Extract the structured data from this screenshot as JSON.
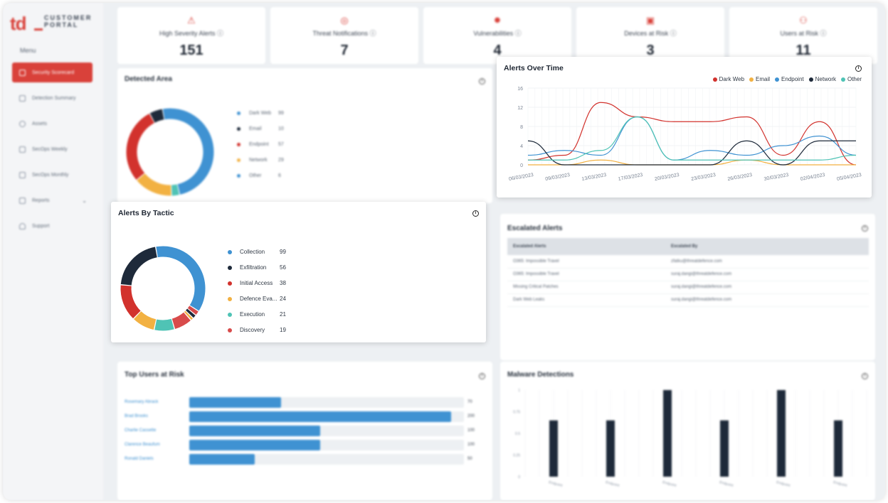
{
  "brand": {
    "logo_letters": "td",
    "logo_text_1": "CUSTOMER",
    "logo_text_2": "PORTAL"
  },
  "sidebar": {
    "menu_label": "Menu",
    "items": [
      {
        "label": "Security Scorecard",
        "active": true
      },
      {
        "label": "Detection Summary",
        "active": false
      },
      {
        "label": "Assets",
        "active": false
      },
      {
        "label": "SecOps Weekly",
        "active": false
      },
      {
        "label": "SecOps Monthly",
        "active": false
      },
      {
        "label": "Reports",
        "active": false,
        "has_submenu": true
      },
      {
        "label": "Support",
        "active": false
      }
    ]
  },
  "kpis": [
    {
      "label": "High Severity Alerts",
      "value": "151",
      "icon": "warning-triangle-icon"
    },
    {
      "label": "Threat Notifications",
      "value": "7",
      "icon": "target-icon"
    },
    {
      "label": "Vulnerabilities",
      "value": "4",
      "icon": "bug-icon"
    },
    {
      "label": "Devices at Risk",
      "value": "3",
      "icon": "device-icon"
    },
    {
      "label": "Users at Risk",
      "value": "11",
      "icon": "users-icon"
    }
  ],
  "detected_area": {
    "title": "Detected Area",
    "items": [
      {
        "label": "Dark Web",
        "value": "99"
      },
      {
        "label": "Email",
        "value": "10"
      },
      {
        "label": "Endpoint",
        "value": "57"
      },
      {
        "label": "Network",
        "value": "29"
      },
      {
        "label": "Other",
        "value": "6"
      }
    ]
  },
  "alerts_by_tactic": {
    "title": "Alerts By Tactic",
    "items": [
      {
        "label": "Collection",
        "value": "99",
        "color": "#3f92d2"
      },
      {
        "label": "Exfiltration",
        "value": "56",
        "color": "#1e2a3a"
      },
      {
        "label": "Initial Access",
        "display": "Initial Access",
        "value": "38",
        "color": "#d2322d"
      },
      {
        "label": "Defence Eva...",
        "value": "24",
        "color": "#f2b142"
      },
      {
        "label": "Execution",
        "value": "21",
        "color": "#4fc3b5"
      },
      {
        "label": "Discovery",
        "value": "19",
        "color": "#d84b4b"
      }
    ]
  },
  "alerts_over_time": {
    "title": "Alerts Over Time",
    "series_legend": [
      {
        "name": "Dark Web",
        "color": "#d2322d"
      },
      {
        "name": "Email",
        "color": "#f2b142"
      },
      {
        "name": "Endpoint",
        "color": "#3f92d2"
      },
      {
        "name": "Network",
        "color": "#1e2a3a"
      },
      {
        "name": "Other",
        "color": "#4fc3b5"
      }
    ],
    "y_ticks": [
      "16",
      "12",
      "8",
      "4",
      "0"
    ],
    "x_ticks": [
      "06/03/2023",
      "09/03/2023",
      "13/03/2023",
      "17/03/2023",
      "20/03/2023",
      "23/03/2023",
      "26/03/2023",
      "30/03/2023",
      "02/04/2023",
      "05/04/2023"
    ]
  },
  "escalated_alerts": {
    "title": "Escalated Alerts",
    "columns": [
      "Escalated Alerts",
      "Escalated By"
    ],
    "rows": [
      [
        "O365: Impossible Travel",
        "zfatku@threatdefence.com"
      ],
      [
        "O365: Impossible Travel",
        "suraj.dangi@threatdefence.com"
      ],
      [
        "Missing Critical Patches",
        "suraj.dangi@threatdefence.com"
      ],
      [
        "Dark Web Leaks",
        "suraj.dangi@threatdefence.com"
      ]
    ]
  },
  "top_users": {
    "title": "Top Users at Risk",
    "rows": [
      {
        "name": "Rosemary Abrack",
        "value": "70"
      },
      {
        "name": "Brad Brooks",
        "value": "200"
      },
      {
        "name": "Charlie Cassette",
        "value": "100"
      },
      {
        "name": "Clarence Beaufum",
        "value": "100"
      },
      {
        "name": "Ronald Daniels",
        "value": "50"
      }
    ]
  },
  "malware": {
    "title": "Malware Detections",
    "y_ticks": [
      "1",
      "0.75",
      "0.5",
      "0.25",
      "0"
    ],
    "x_labels": [
      "Endpoint",
      "Endpoint",
      "Endpoint",
      "Endpoint",
      "Endpoint",
      "Endpoint"
    ]
  },
  "chart_data": [
    {
      "type": "line",
      "title": "Alerts Over Time",
      "x": [
        "06/03/2023",
        "09/03/2023",
        "13/03/2023",
        "17/03/2023",
        "20/03/2023",
        "23/03/2023",
        "26/03/2023",
        "30/03/2023",
        "02/04/2023",
        "05/04/2023"
      ],
      "ylim": [
        0,
        16
      ],
      "series": [
        {
          "name": "Dark Web",
          "values": [
            1,
            2,
            13,
            10,
            9,
            9,
            10,
            2,
            9,
            0
          ]
        },
        {
          "name": "Email",
          "values": [
            0,
            0,
            1,
            0,
            0,
            0,
            1,
            0,
            0,
            0
          ]
        },
        {
          "name": "Endpoint",
          "values": [
            2,
            3,
            2,
            10,
            1,
            3,
            2,
            4,
            6,
            2
          ]
        },
        {
          "name": "Network",
          "values": [
            5,
            0,
            0,
            0,
            0,
            0,
            5,
            0,
            5,
            5
          ]
        },
        {
          "name": "Other",
          "values": [
            1,
            1,
            3,
            10,
            1,
            1,
            1,
            1,
            1,
            2
          ]
        }
      ]
    },
    {
      "type": "pie",
      "title": "Alerts By Tactic",
      "categories": [
        "Collection",
        "Exfiltration",
        "Initial Access",
        "Defence Eva...",
        "Execution",
        "Discovery"
      ],
      "values": [
        99,
        56,
        38,
        24,
        21,
        19
      ]
    },
    {
      "type": "pie",
      "title": "Detected Area",
      "categories": [
        "Dark Web",
        "Email",
        "Endpoint",
        "Network",
        "Other"
      ],
      "values": [
        99,
        10,
        57,
        29,
        6
      ]
    },
    {
      "type": "bar",
      "title": "Top Users at Risk",
      "categories": [
        "Rosemary Abrack",
        "Brad Brooks",
        "Charlie Cassette",
        "Clarence Beaufum",
        "Ronald Daniels"
      ],
      "values": [
        70,
        200,
        100,
        100,
        50
      ]
    },
    {
      "type": "bar",
      "title": "Malware Detections",
      "categories": [
        "Endpoint",
        "Endpoint",
        "Endpoint",
        "Endpoint",
        "Endpoint",
        "Endpoint"
      ],
      "values": [
        0.65,
        0.65,
        1,
        0.65,
        1,
        0.65
      ],
      "ylim": [
        0,
        1
      ]
    }
  ]
}
